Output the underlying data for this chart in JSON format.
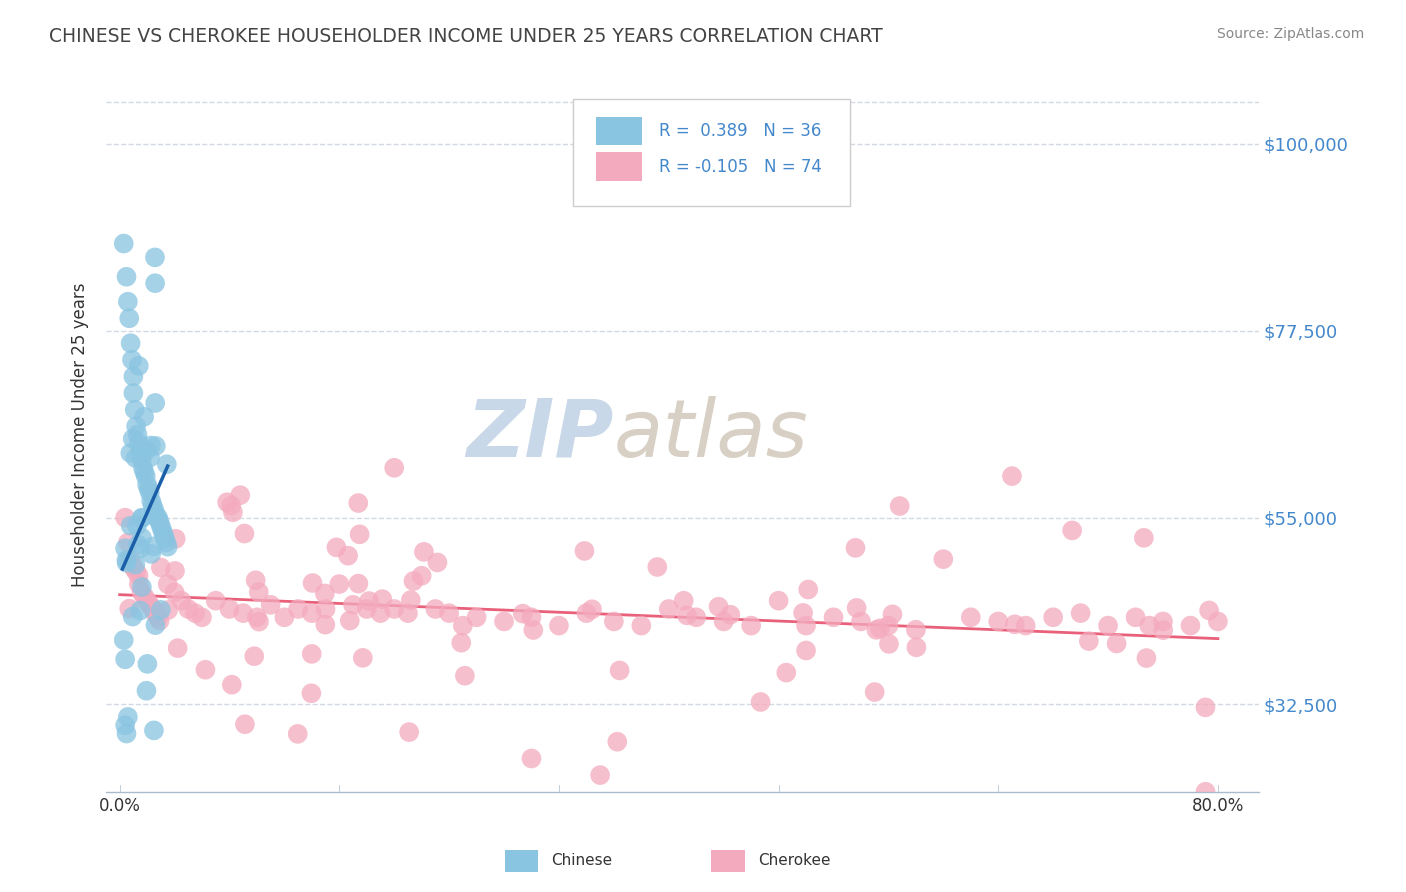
{
  "title": "CHINESE VS CHEROKEE HOUSEHOLDER INCOME UNDER 25 YEARS CORRELATION CHART",
  "source": "Source: ZipAtlas.com",
  "xlim": [
    -1.0,
    83.0
  ],
  "ylim": [
    22000,
    108000
  ],
  "ytick_values": [
    32500,
    55000,
    77500,
    100000
  ],
  "ytick_labels": [
    "$32,500",
    "$55,000",
    "$77,500",
    "$100,000"
  ],
  "xtick_values": [
    0.0,
    80.0
  ],
  "xtick_labels": [
    "0.0%",
    "80.0%"
  ],
  "chinese_color": "#89C4E1",
  "cherokee_color": "#F4AABE",
  "chinese_line_color": "#1A5FA8",
  "cherokee_line_color": "#E8607A",
  "chinese_R": 0.389,
  "chinese_N": 36,
  "cherokee_R": -0.105,
  "cherokee_N": 74,
  "watermark": "ZIPatlas",
  "watermark_color": "#C8D8E8",
  "ylabel": "Householder Income Under 25 years",
  "background_color": "#FFFFFF",
  "grid_color": "#C8D0DC",
  "ytick_color": "#4488CC",
  "chinese_scatter_x": [
    0.3,
    0.5,
    0.6,
    0.7,
    0.8,
    0.9,
    1.0,
    1.0,
    1.1,
    1.2,
    1.3,
    1.4,
    1.5,
    1.6,
    1.7,
    1.8,
    1.9,
    2.0,
    2.1,
    2.2,
    2.3,
    2.4,
    2.5,
    2.6,
    2.7,
    2.8,
    2.9,
    3.0,
    3.1,
    3.2,
    3.3,
    3.4,
    3.5,
    0.4,
    0.5,
    0.6
  ],
  "chinese_scatter_y": [
    88000,
    84000,
    81000,
    79000,
    76000,
    74000,
    72000,
    70000,
    68000,
    66000,
    65000,
    64000,
    63000,
    62000,
    61000,
    60500,
    60000,
    59000,
    58500,
    58000,
    57000,
    56500,
    56000,
    55500,
    55000,
    55000,
    54500,
    54000,
    53500,
    53000,
    52500,
    52000,
    51500,
    30000,
    29000,
    31000
  ],
  "cherokee_scatter_x": [
    0.4,
    0.6,
    0.8,
    1.0,
    1.2,
    1.4,
    1.6,
    1.8,
    2.0,
    2.2,
    2.4,
    2.6,
    2.8,
    3.0,
    3.5,
    4.0,
    4.5,
    5.0,
    5.5,
    6.0,
    7.0,
    8.0,
    9.0,
    10.0,
    11.0,
    12.0,
    13.0,
    14.0,
    15.0,
    16.0,
    17.0,
    18.0,
    19.0,
    20.0,
    21.0,
    22.0,
    23.0,
    24.0,
    25.0,
    26.0,
    28.0,
    30.0,
    32.0,
    34.0,
    36.0,
    38.0,
    40.0,
    42.0,
    44.0,
    46.0,
    48.0,
    50.0,
    52.0,
    54.0,
    56.0,
    58.0,
    60.0,
    62.0,
    64.0,
    66.0,
    68.0,
    70.0,
    72.0,
    74.0,
    76.0,
    78.0,
    80.0,
    30.0,
    50.0,
    20.0,
    35.0,
    55.0,
    65.0,
    75.0
  ],
  "cherokee_scatter_y": [
    55000,
    52000,
    50000,
    49000,
    48500,
    47000,
    46000,
    45500,
    45000,
    44500,
    44000,
    43500,
    43000,
    49000,
    47000,
    46000,
    45000,
    44000,
    43500,
    43000,
    45000,
    44000,
    43500,
    43000,
    44500,
    43000,
    44000,
    43500,
    44000,
    47000,
    44500,
    44000,
    43500,
    44000,
    43500,
    48000,
    44000,
    43500,
    42000,
    43000,
    42500,
    43000,
    42000,
    43500,
    42500,
    42000,
    44000,
    43000,
    42500,
    42000,
    45000,
    42000,
    43000,
    42500,
    42000,
    41500,
    50000,
    43000,
    42500,
    42000,
    43000,
    43500,
    42000,
    43000,
    42500,
    42000,
    42500,
    26000,
    39000,
    61000,
    24000,
    34000,
    60000,
    42000
  ]
}
